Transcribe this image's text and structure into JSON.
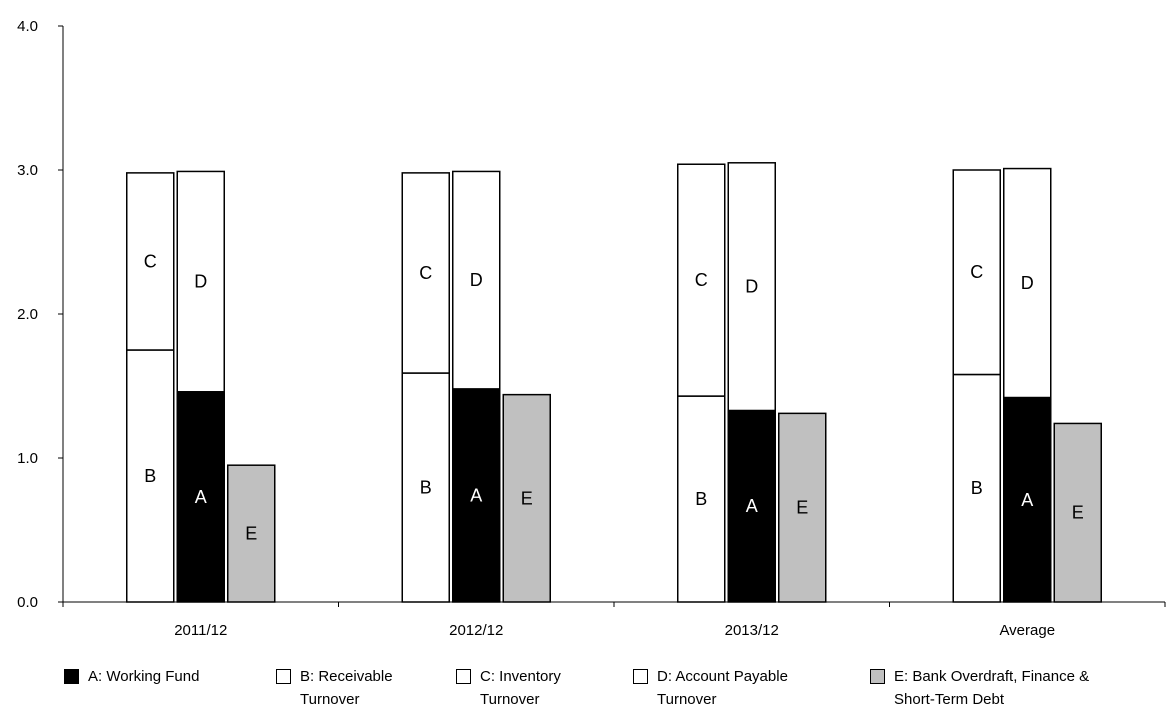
{
  "chart_data": {
    "type": "bar",
    "categories": [
      "2011/12",
      "2012/12",
      "2013/12",
      "Average"
    ],
    "ylim": [
      0,
      4
    ],
    "yticks": [
      "0.0",
      "1.0",
      "2.0",
      "3.0",
      "4.0"
    ],
    "grid": false,
    "legend_position": "bottom",
    "colors": {
      "A": "#000000",
      "B": "#ffffff",
      "C": "#ffffff",
      "D": "#ffffff",
      "E": "#c0c0c0"
    },
    "series": [
      {
        "key": "A",
        "name": "A: Working Fund",
        "label": "A",
        "values": [
          1.46,
          1.48,
          1.33,
          1.42
        ]
      },
      {
        "key": "B",
        "name": "B: Receivable Turnover",
        "label": "B",
        "values": [
          1.75,
          1.59,
          1.43,
          1.58
        ]
      },
      {
        "key": "C",
        "name": "C: Inventory Turnover",
        "label": "C",
        "values": [
          1.23,
          1.39,
          1.61,
          1.42
        ]
      },
      {
        "key": "D",
        "name": "D: Account Payable Turnover",
        "label": "D",
        "values": [
          1.53,
          1.51,
          1.72,
          1.59
        ]
      },
      {
        "key": "E",
        "name": "E: Bank Overdraft, Finance & Short-Term Debt",
        "label": "E",
        "values": [
          0.95,
          1.44,
          1.31,
          1.24
        ]
      }
    ],
    "stacks": {
      "left": [
        "B",
        "C"
      ],
      "middle": [
        "A",
        "D"
      ],
      "right": [
        "E"
      ]
    }
  },
  "legend": [
    {
      "key": "A",
      "line1": "A: Working Fund",
      "line2": ""
    },
    {
      "key": "B",
      "line1": "B: Receivable",
      "line2": "Turnover"
    },
    {
      "key": "C",
      "line1": "C: Inventory",
      "line2": "Turnover"
    },
    {
      "key": "D",
      "line1": "D: Account Payable",
      "line2": "Turnover"
    },
    {
      "key": "E",
      "line1": "E: Bank Overdraft, Finance &",
      "line2": "Short-Term Debt"
    }
  ]
}
